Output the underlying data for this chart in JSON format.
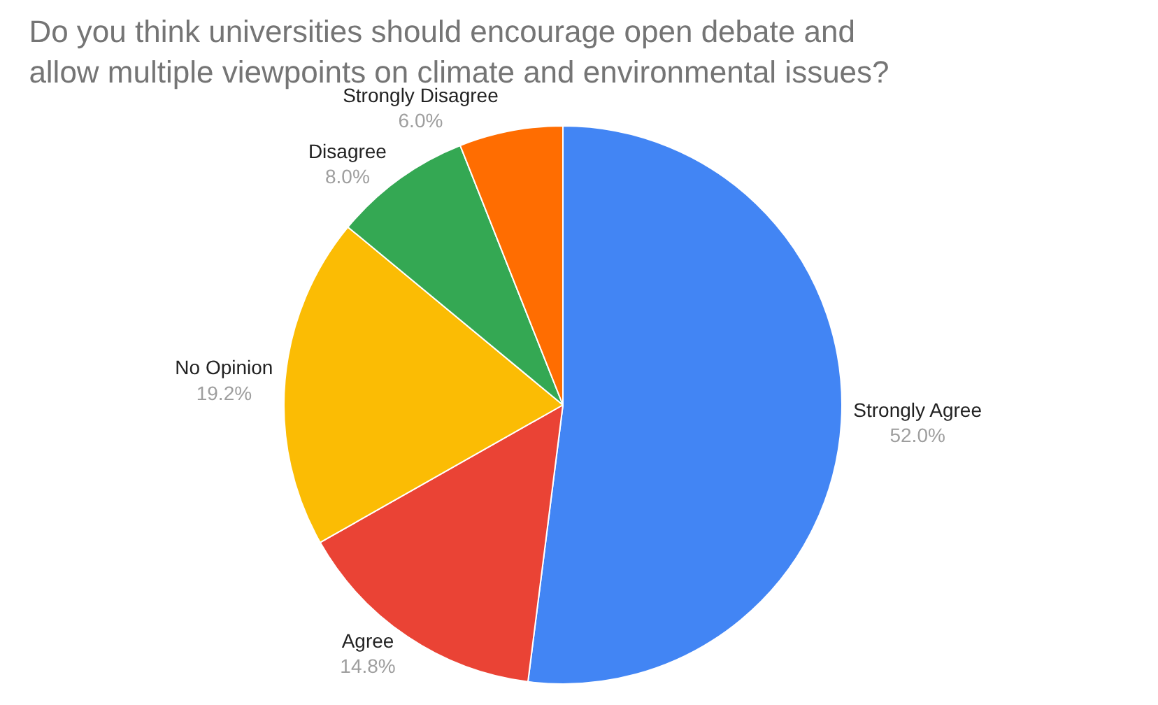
{
  "chart_data": {
    "type": "pie",
    "title": "Do you think universities should encourage open debate and allow multiple viewpoints on climate and environmental issues?",
    "categories": [
      "Strongly Agree",
      "Agree",
      "No Opinion",
      "Disagree",
      "Strongly Disagree"
    ],
    "values": [
      52.0,
      14.8,
      19.2,
      8.0,
      6.0
    ],
    "value_labels": [
      "52.0%",
      "14.8%",
      "19.2%",
      "8.0%",
      "6.0%"
    ],
    "colors": [
      "#4285f4",
      "#ea4335",
      "#fbbc04",
      "#34a853",
      "#ff6d01"
    ],
    "legend": false
  }
}
